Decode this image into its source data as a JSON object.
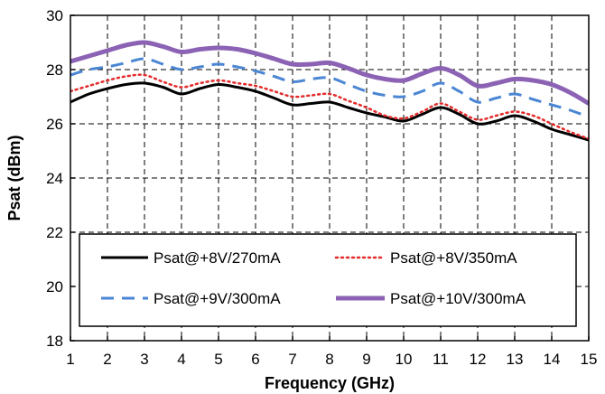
{
  "chart_data": {
    "type": "line",
    "xlabel": "Frequency (GHz)",
    "ylabel": "Psat (dBm)",
    "xlim": [
      1,
      15
    ],
    "ylim": [
      18,
      30
    ],
    "xticks": [
      1,
      2,
      3,
      4,
      5,
      6,
      7,
      8,
      9,
      10,
      11,
      12,
      13,
      14,
      15
    ],
    "yticks": [
      18,
      20,
      22,
      24,
      26,
      28,
      30
    ],
    "grid": true,
    "legend_position": "lower-center",
    "series": [
      {
        "name": "Psat@+8V/270mA",
        "color": "#000000",
        "style": "solid",
        "x": [
          1,
          1.5,
          2,
          2.5,
          3,
          3.5,
          4,
          4.5,
          5,
          5.5,
          6,
          6.5,
          7,
          7.5,
          8,
          8.5,
          9,
          9.5,
          10,
          10.5,
          11,
          11.5,
          12,
          12.5,
          13,
          13.5,
          14,
          14.5,
          15
        ],
        "y": [
          26.8,
          27.1,
          27.3,
          27.45,
          27.5,
          27.35,
          27.1,
          27.3,
          27.45,
          27.35,
          27.2,
          26.95,
          26.7,
          26.75,
          26.8,
          26.6,
          26.4,
          26.25,
          26.1,
          26.35,
          26.6,
          26.35,
          26.0,
          26.1,
          26.3,
          26.1,
          25.8,
          25.6,
          25.4
        ]
      },
      {
        "name": "Psat@+8V/350mA",
        "color": "#e32b2b",
        "style": "dotted",
        "x": [
          1,
          1.5,
          2,
          2.5,
          3,
          3.5,
          4,
          4.5,
          5,
          5.5,
          6,
          6.5,
          7,
          7.5,
          8,
          8.5,
          9,
          9.5,
          10,
          10.5,
          11,
          11.5,
          12,
          12.5,
          13,
          13.5,
          14,
          14.5,
          15
        ],
        "y": [
          27.2,
          27.4,
          27.6,
          27.75,
          27.8,
          27.55,
          27.35,
          27.5,
          27.6,
          27.5,
          27.4,
          27.2,
          27.0,
          27.05,
          27.1,
          26.85,
          26.6,
          26.3,
          26.2,
          26.45,
          26.75,
          26.45,
          26.15,
          26.3,
          26.45,
          26.3,
          26.0,
          25.7,
          25.45
        ]
      },
      {
        "name": "Psat@+9V/300mA",
        "color": "#4a86d4",
        "style": "dashed",
        "x": [
          1,
          1.5,
          2,
          2.5,
          3,
          3.5,
          4,
          4.5,
          5,
          5.5,
          6,
          6.5,
          7,
          7.5,
          8,
          8.5,
          9,
          9.5,
          10,
          10.5,
          11,
          11.5,
          12,
          12.5,
          13,
          13.5,
          14,
          14.5,
          15
        ],
        "y": [
          27.8,
          28.0,
          28.1,
          28.25,
          28.4,
          28.2,
          28.0,
          28.1,
          28.2,
          28.1,
          27.95,
          27.75,
          27.55,
          27.65,
          27.7,
          27.45,
          27.2,
          27.05,
          27.0,
          27.2,
          27.5,
          27.2,
          26.8,
          26.95,
          27.1,
          26.9,
          26.7,
          26.5,
          26.25
        ]
      },
      {
        "name": "Psat@+10V/300mA",
        "color": "#8b62b4",
        "style": "solid-thick",
        "x": [
          1,
          1.5,
          2,
          2.5,
          3,
          3.5,
          4,
          4.5,
          5,
          5.5,
          6,
          6.5,
          7,
          7.5,
          8,
          8.5,
          9,
          9.5,
          10,
          10.5,
          11,
          11.5,
          12,
          12.5,
          13,
          13.5,
          14,
          14.5,
          15
        ],
        "y": [
          28.3,
          28.5,
          28.7,
          28.9,
          29.0,
          28.85,
          28.65,
          28.75,
          28.8,
          28.75,
          28.6,
          28.4,
          28.2,
          28.2,
          28.25,
          28.05,
          27.8,
          27.65,
          27.6,
          27.85,
          28.05,
          27.8,
          27.4,
          27.5,
          27.65,
          27.6,
          27.45,
          27.15,
          26.75
        ]
      }
    ]
  }
}
